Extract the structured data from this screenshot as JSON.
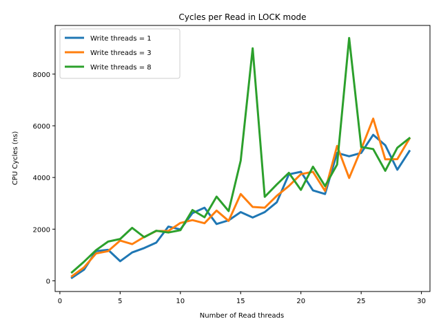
{
  "chart_data": {
    "type": "line",
    "title": "Cycles per Read in LOCK mode",
    "xlabel": "Number of Read threads",
    "ylabel": "CPU Cycles (ns)",
    "xlim": [
      0,
      30
    ],
    "ylim": [
      0,
      9500
    ],
    "xticks": [
      0,
      5,
      10,
      15,
      20,
      25,
      30
    ],
    "yticks": [
      0,
      2000,
      4000,
      6000,
      8000
    ],
    "grid": false,
    "legend_position": "top-left",
    "x": [
      1,
      2,
      3,
      4,
      5,
      6,
      7,
      8,
      9,
      10,
      11,
      12,
      13,
      14,
      15,
      16,
      17,
      18,
      19,
      20,
      21,
      22,
      23,
      24,
      25,
      26,
      27,
      28,
      29
    ],
    "series": [
      {
        "name": "Write threads = 1",
        "color": "#1f77b4",
        "values": [
          120,
          430,
          1150,
          1200,
          760,
          1100,
          1270,
          1480,
          2100,
          1990,
          2620,
          2830,
          2200,
          2340,
          2660,
          2450,
          2660,
          3040,
          4120,
          4220,
          3500,
          3360,
          4950,
          4820,
          4950,
          5650,
          5250,
          4300,
          5020
        ]
      },
      {
        "name": "Write threads = 3",
        "color": "#ff7f0e",
        "values": [
          180,
          520,
          1060,
          1150,
          1560,
          1420,
          1700,
          1930,
          1930,
          2240,
          2350,
          2230,
          2720,
          2320,
          3360,
          2860,
          2830,
          3290,
          3670,
          4130,
          4220,
          3480,
          5220,
          3980,
          5100,
          6280,
          4700,
          4710,
          5500
        ]
      },
      {
        "name": "Write threads = 8",
        "color": "#2ca02c",
        "values": [
          330,
          740,
          1190,
          1520,
          1620,
          2050,
          1690,
          1940,
          1870,
          1960,
          2740,
          2460,
          3260,
          2700,
          4650,
          9000,
          3250,
          3730,
          4180,
          3520,
          4420,
          3670,
          4500,
          9400,
          5180,
          5100,
          4260,
          5150,
          5520
        ]
      }
    ]
  }
}
